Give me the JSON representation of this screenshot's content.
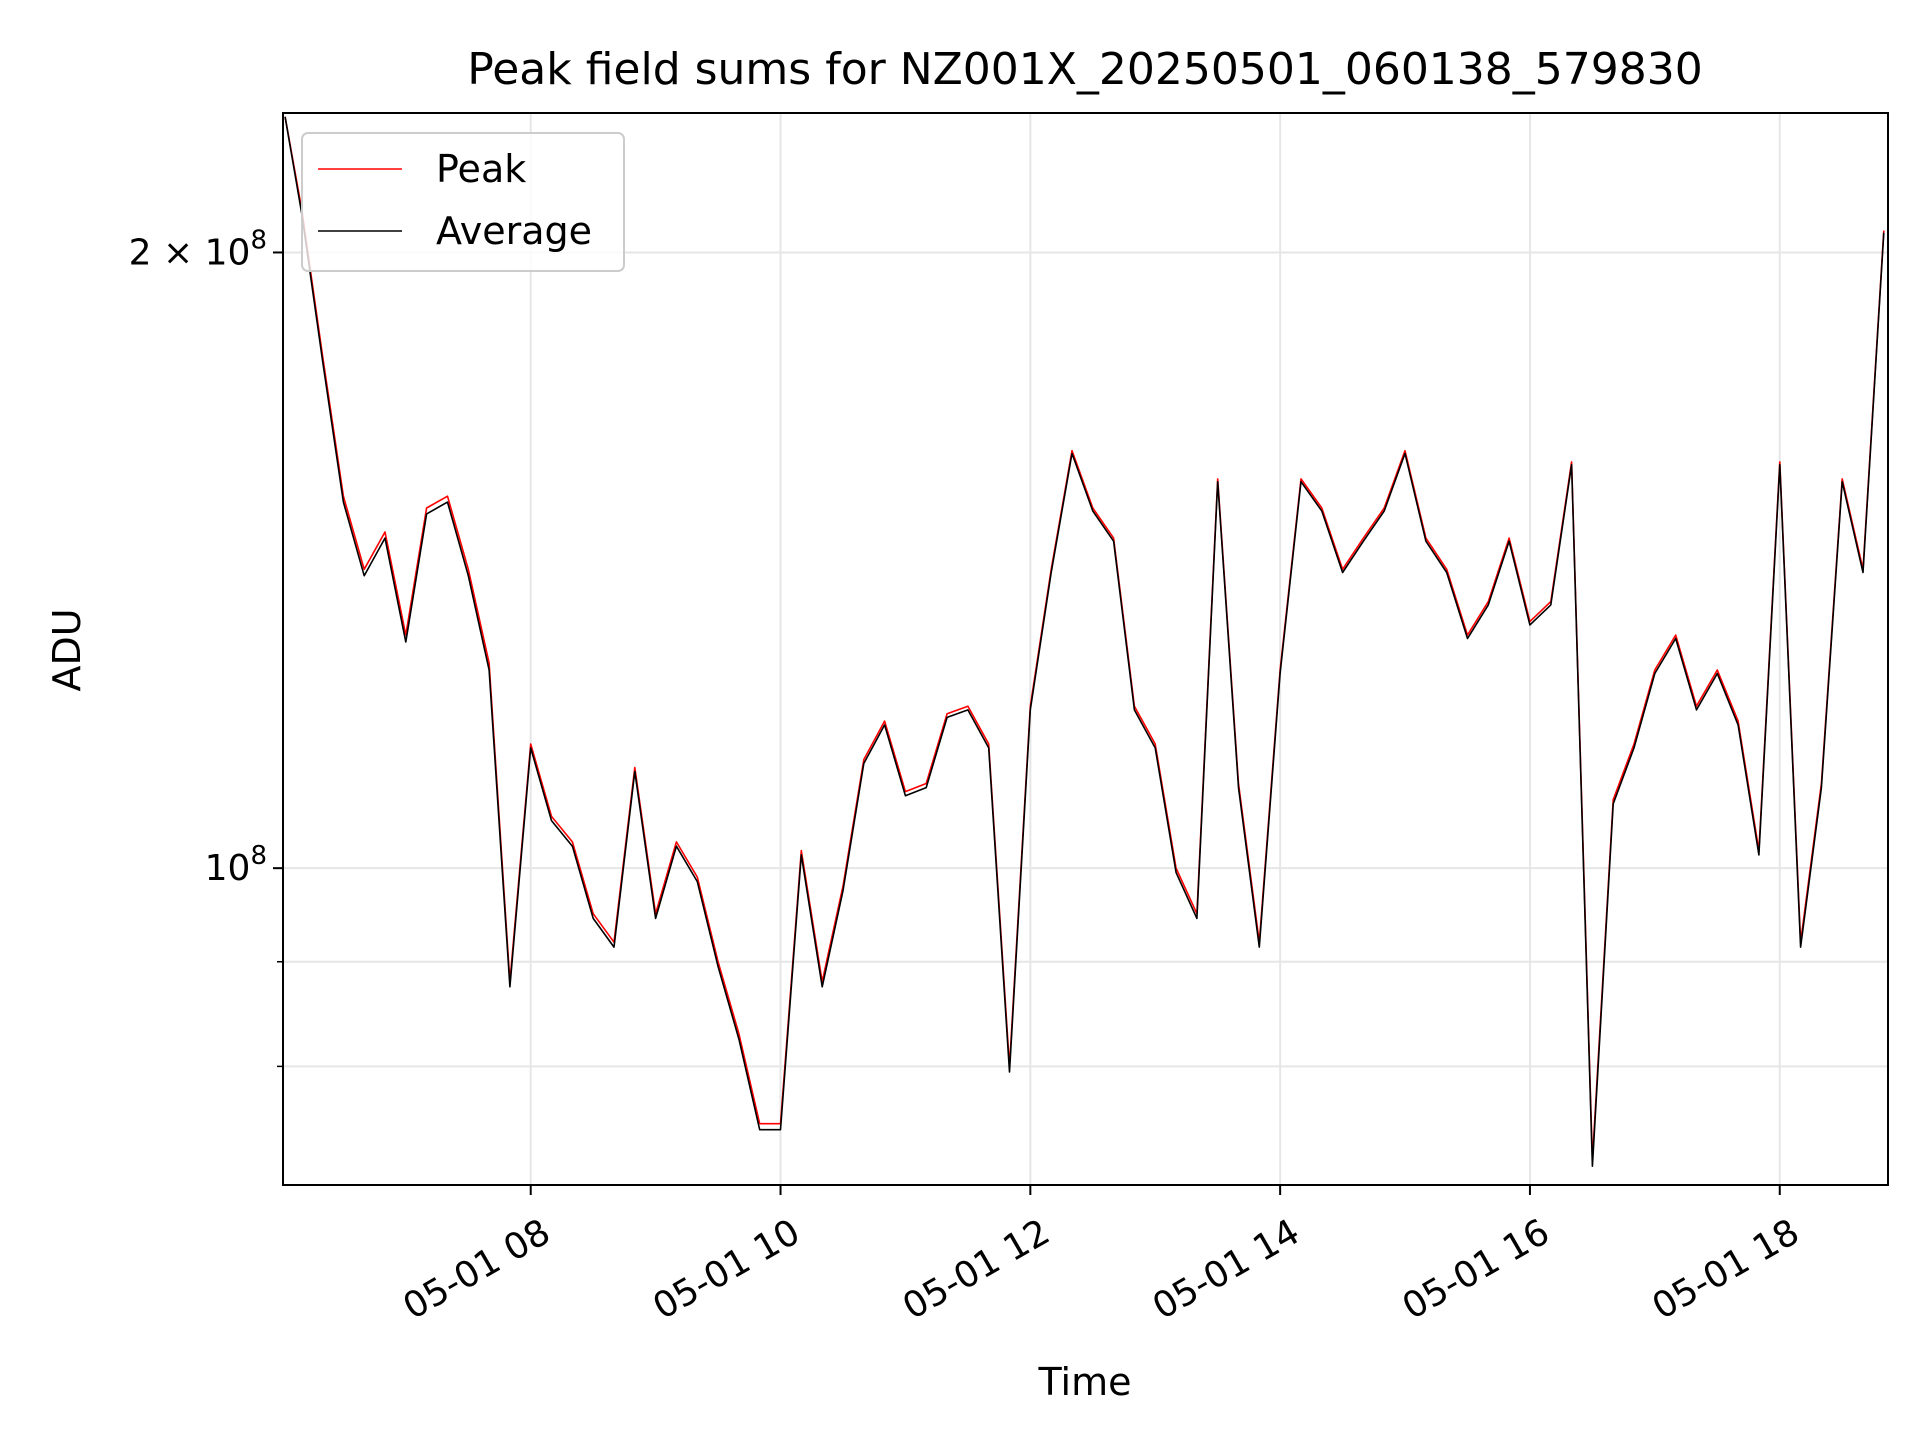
{
  "chart_data": {
    "type": "line",
    "title": "Peak field sums for NZ001X_20250501_060138_579830",
    "xlabel": "Time",
    "ylabel": "ADU",
    "y_scale": "log",
    "xlim": [
      "2025-05-01 06:01",
      "2025-05-01 18:52"
    ],
    "ylim": [
      70000000,
      234000000
    ],
    "x_tick_labels": [
      "05-01 08",
      "05-01 10",
      "05-01 12",
      "05-01 14",
      "05-01 16",
      "05-01 18"
    ],
    "x_tick_times": [
      "2025-05-01 08:00",
      "2025-05-01 10:00",
      "2025-05-01 12:00",
      "2025-05-01 14:00",
      "2025-05-01 16:00",
      "2025-05-01 18:00"
    ],
    "y_major_ticks": [
      {
        "value": 100000000,
        "mantissa": "",
        "base": "10",
        "exp": "8"
      },
      {
        "value": 200000000,
        "mantissa": "2 × ",
        "base": "10",
        "exp": "8"
      }
    ],
    "y_minor_ticks": [
      80000000,
      90000000
    ],
    "grid": true,
    "legend_position": "upper-left",
    "x": [
      "2025-05-01 06:02",
      "2025-05-01 06:10",
      "2025-05-01 06:20",
      "2025-05-01 06:30",
      "2025-05-01 06:40",
      "2025-05-01 06:50",
      "2025-05-01 07:00",
      "2025-05-01 07:10",
      "2025-05-01 07:20",
      "2025-05-01 07:30",
      "2025-05-01 07:40",
      "2025-05-01 07:50",
      "2025-05-01 08:00",
      "2025-05-01 08:10",
      "2025-05-01 08:20",
      "2025-05-01 08:30",
      "2025-05-01 08:40",
      "2025-05-01 08:50",
      "2025-05-01 09:00",
      "2025-05-01 09:10",
      "2025-05-01 09:20",
      "2025-05-01 09:30",
      "2025-05-01 09:40",
      "2025-05-01 09:50",
      "2025-05-01 10:00",
      "2025-05-01 10:10",
      "2025-05-01 10:20",
      "2025-05-01 10:30",
      "2025-05-01 10:40",
      "2025-05-01 10:50",
      "2025-05-01 11:00",
      "2025-05-01 11:10",
      "2025-05-01 11:20",
      "2025-05-01 11:30",
      "2025-05-01 11:40",
      "2025-05-01 11:50",
      "2025-05-01 12:00",
      "2025-05-01 12:10",
      "2025-05-01 12:20",
      "2025-05-01 12:30",
      "2025-05-01 12:40",
      "2025-05-01 12:50",
      "2025-05-01 13:00",
      "2025-05-01 13:10",
      "2025-05-01 13:20",
      "2025-05-01 13:30",
      "2025-05-01 13:40",
      "2025-05-01 13:50",
      "2025-05-01 14:00",
      "2025-05-01 14:10",
      "2025-05-01 14:20",
      "2025-05-01 14:30",
      "2025-05-01 14:40",
      "2025-05-01 14:50",
      "2025-05-01 15:00",
      "2025-05-01 15:10",
      "2025-05-01 15:20",
      "2025-05-01 15:30",
      "2025-05-01 15:40",
      "2025-05-01 15:50",
      "2025-05-01 16:00",
      "2025-05-01 16:10",
      "2025-05-01 16:20",
      "2025-05-01 16:30",
      "2025-05-01 16:40",
      "2025-05-01 16:50",
      "2025-05-01 17:00",
      "2025-05-01 17:10",
      "2025-05-01 17:20",
      "2025-05-01 17:30",
      "2025-05-01 17:40",
      "2025-05-01 17:50",
      "2025-05-01 18:00",
      "2025-05-01 18:10",
      "2025-05-01 18:20",
      "2025-05-01 18:30",
      "2025-05-01 18:40",
      "2025-05-01 18:50"
    ],
    "series": [
      {
        "name": "Peak",
        "color": "#ff0000",
        "values": [
          233000000,
          210000000,
          178000000,
          152000000,
          140000000,
          146000000,
          130000000,
          150000000,
          152000000,
          140000000,
          126000000,
          88000000,
          115000000,
          106000000,
          103000000,
          95000000,
          92000000,
          112000000,
          95000000,
          103000000,
          99000000,
          90000000,
          83000000,
          75000000,
          75000000,
          102000000,
          88000000,
          98000000,
          113000000,
          118000000,
          109000000,
          110000000,
          119000000,
          120000000,
          115000000,
          80000000,
          120000000,
          140000000,
          160000000,
          150000000,
          145000000,
          120000000,
          115000000,
          100000000,
          95000000,
          155000000,
          110000000,
          92000000,
          125000000,
          155000000,
          150000000,
          140000000,
          145000000,
          150000000,
          160000000,
          145000000,
          140000000,
          130000000,
          135000000,
          145000000,
          132000000,
          135000000,
          158000000,
          72000000,
          108000000,
          115000000,
          125000000,
          130000000,
          120000000,
          125000000,
          118000000,
          102000000,
          158000000,
          92000000,
          110000000,
          155000000,
          140000000,
          205000000
        ]
      },
      {
        "name": "Average",
        "color": "#000000",
        "values": [
          233000000,
          209000000,
          177000000,
          151000000,
          139000000,
          145000000,
          129000000,
          149000000,
          151000000,
          139000000,
          125000000,
          87500000,
          114500000,
          105500000,
          102500000,
          94500000,
          91500000,
          111500000,
          94500000,
          102500000,
          98500000,
          89500000,
          82500000,
          74500000,
          74500000,
          101500000,
          87500000,
          97500000,
          112500000,
          117500000,
          108500000,
          109500000,
          118500000,
          119500000,
          114500000,
          79500000,
          119500000,
          139500000,
          159500000,
          149500000,
          144500000,
          119500000,
          114500000,
          99500000,
          94500000,
          154500000,
          109500000,
          91500000,
          124500000,
          154500000,
          149500000,
          139500000,
          144500000,
          149500000,
          159500000,
          144500000,
          139500000,
          129500000,
          134500000,
          144500000,
          131500000,
          134500000,
          157500000,
          71500000,
          107500000,
          114500000,
          124500000,
          129500000,
          119500000,
          124500000,
          117500000,
          101500000,
          157500000,
          91500000,
          109500000,
          154500000,
          139500000,
          204500000
        ]
      }
    ]
  }
}
